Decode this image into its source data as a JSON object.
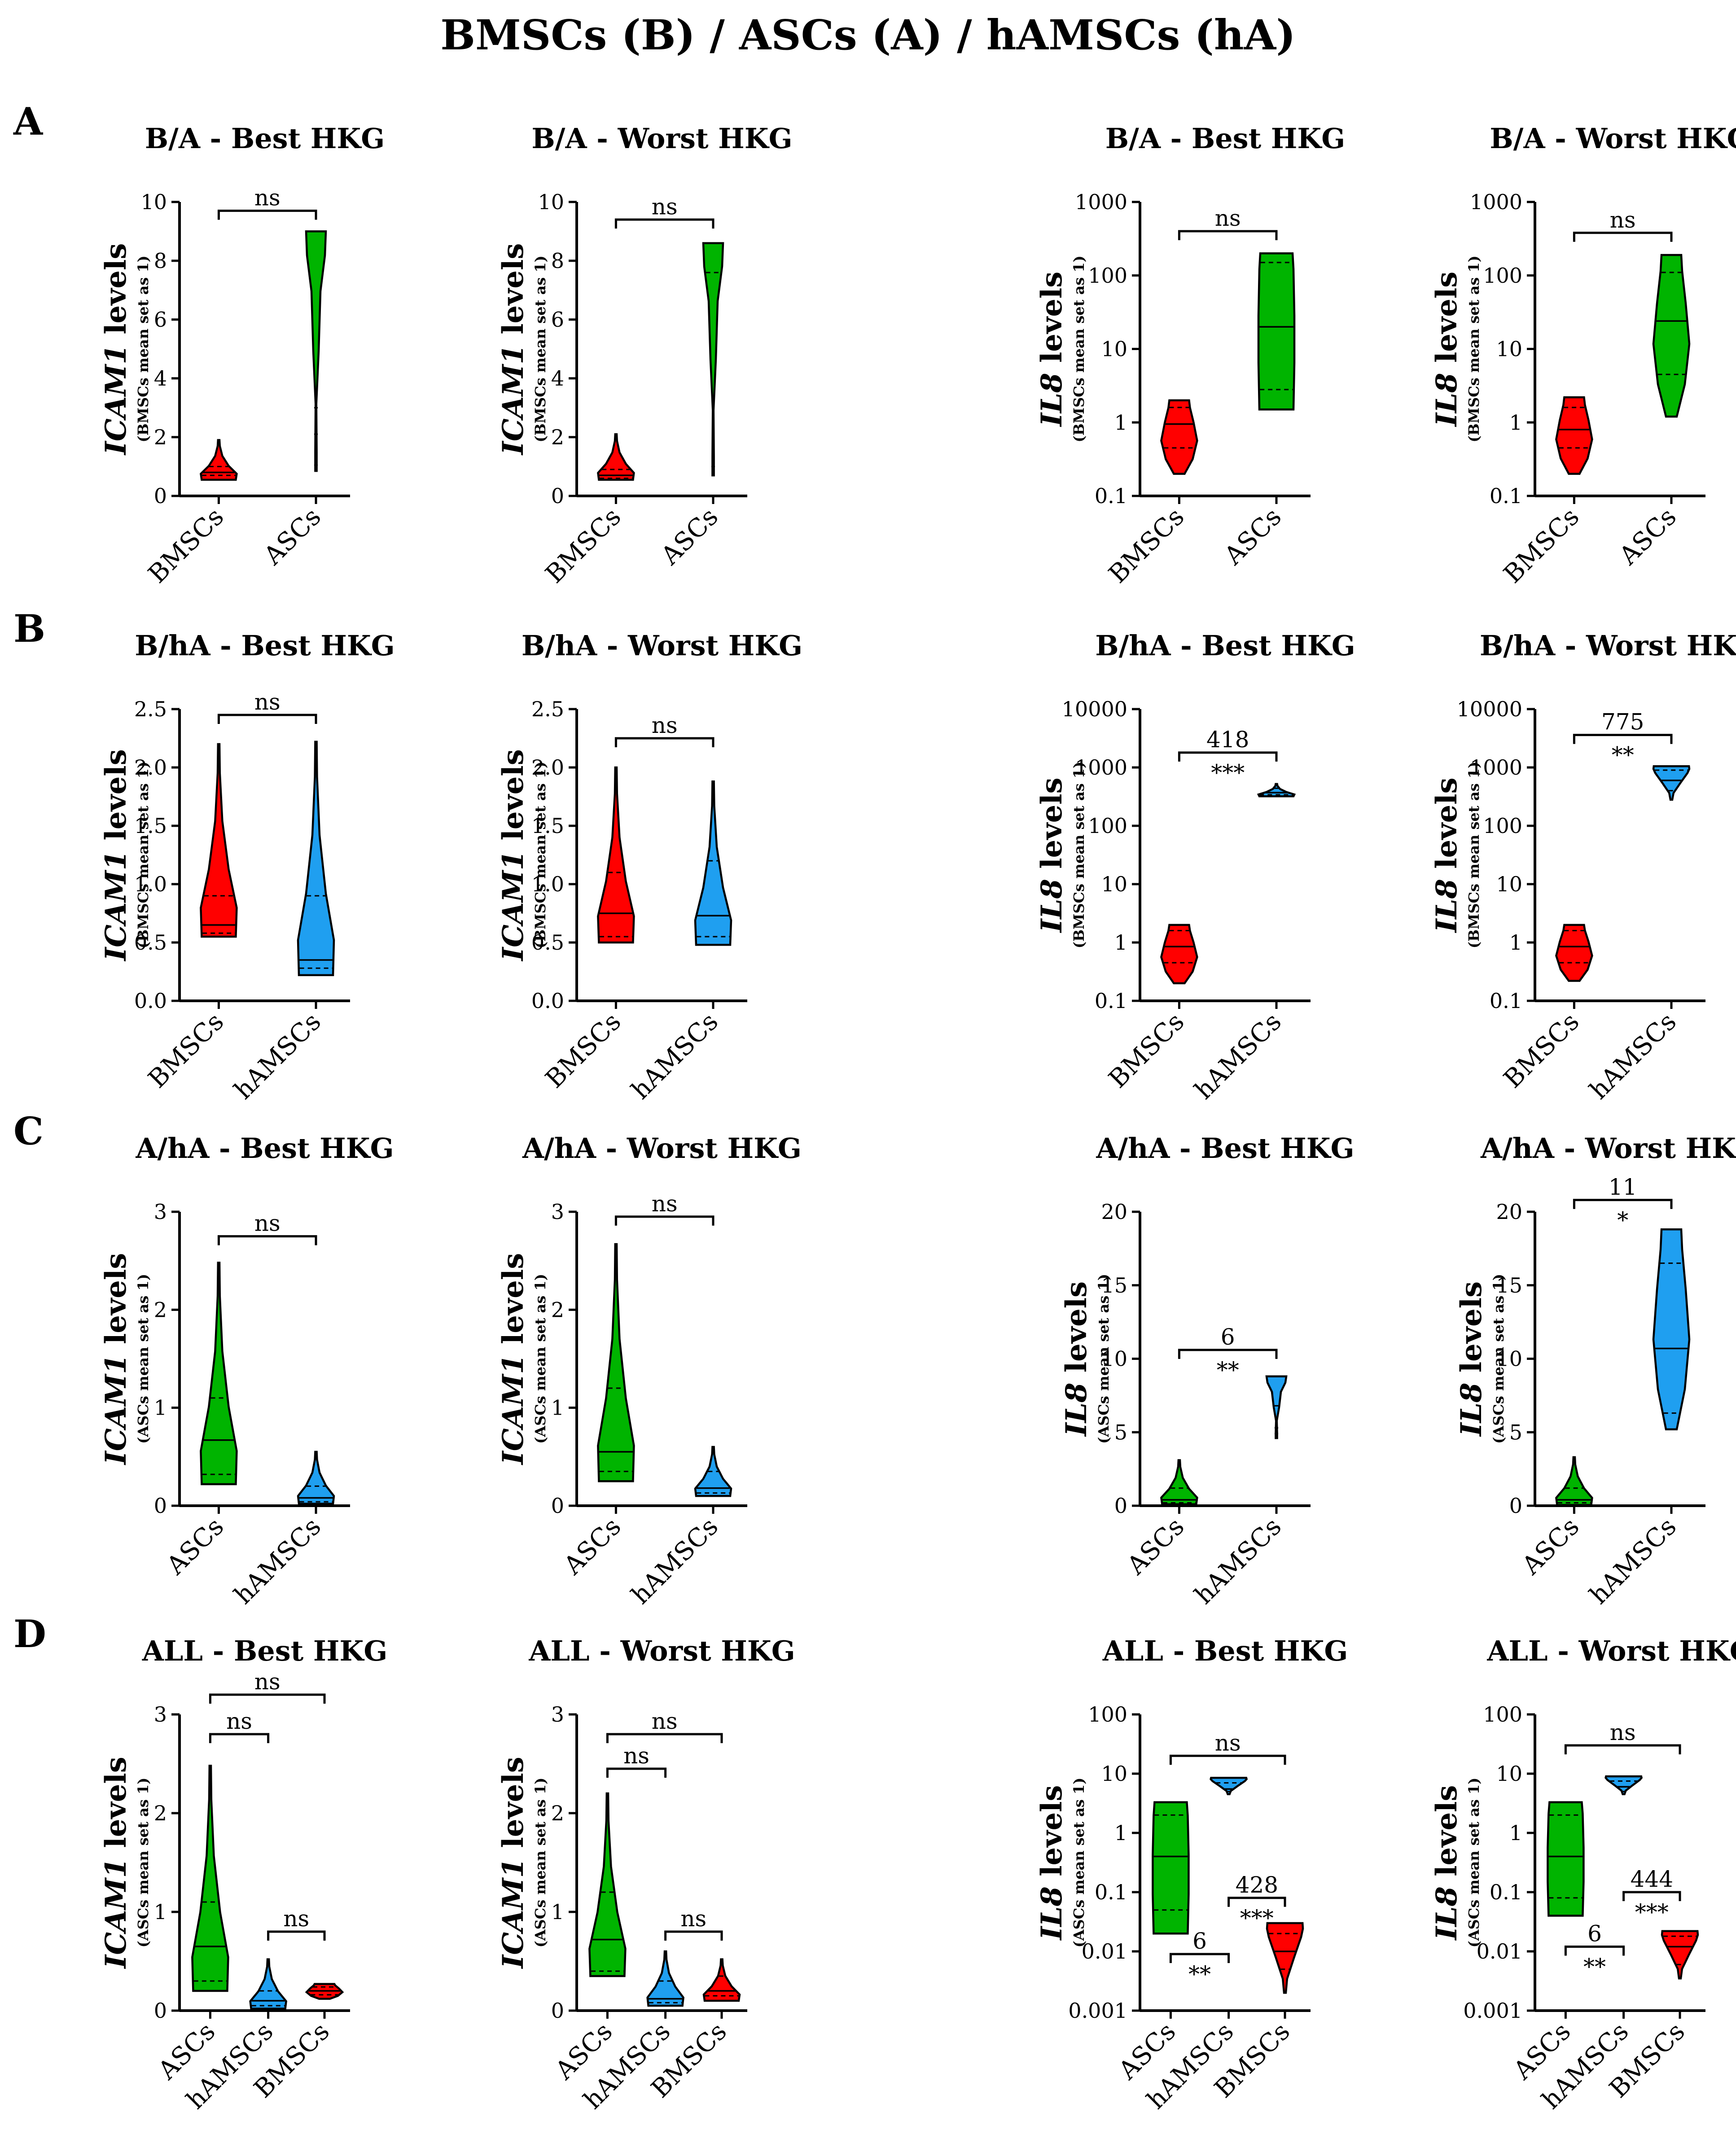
{
  "title": "BMSCs (B) / ASCs (A) / hAMSCs (hA)",
  "colors": {
    "BMSCs": "#ff0000",
    "ASCs": "#00b400",
    "hAMSCs": "#1f9ff0"
  },
  "rows": [
    {
      "letter": "A"
    },
    {
      "letter": "B"
    },
    {
      "letter": "C"
    },
    {
      "letter": "D"
    }
  ],
  "chart_data": [
    {
      "type": "violin",
      "title": "B/A - Best HKG",
      "ylabel": "ICAM1",
      "ylabel_rest": " levels",
      "ylabel_sub": "(BMSCs mean set as 1)",
      "scale": "linear",
      "ylim": [
        0,
        10
      ],
      "yticks": [
        0,
        2,
        4,
        6,
        8,
        10
      ],
      "ytick_labels": [
        "0",
        "2",
        "4",
        "6",
        "8",
        "10"
      ],
      "groups": [
        {
          "name": "BMSCs",
          "color": "BMSCs",
          "min": 0.55,
          "max": 1.9,
          "median": 0.8,
          "q1": 0.7,
          "q3": 1.0,
          "pattern": "bottom"
        },
        {
          "name": "ASCs",
          "color": "ASCs",
          "min": 0.85,
          "max": 9.0,
          "median": 2.1,
          "q1": 1.05,
          "q3": 3.0,
          "pattern": "cone"
        }
      ],
      "annotations": [
        {
          "from": 0,
          "to": 1,
          "y": 9.7,
          "labels": [
            "ns"
          ]
        }
      ]
    },
    {
      "type": "violin",
      "title": "B/A - Worst HKG",
      "ylabel": "ICAM1",
      "ylabel_rest": " levels",
      "ylabel_sub": "(BMSCs mean set as 1)",
      "scale": "linear",
      "ylim": [
        0,
        10
      ],
      "yticks": [
        0,
        2,
        4,
        6,
        8,
        10
      ],
      "ytick_labels": [
        "0",
        "2",
        "4",
        "6",
        "8",
        "10"
      ],
      "groups": [
        {
          "name": "BMSCs",
          "color": "BMSCs",
          "min": 0.55,
          "max": 2.1,
          "median": 0.7,
          "q1": 0.6,
          "q3": 0.9,
          "pattern": "bottom"
        },
        {
          "name": "ASCs",
          "color": "ASCs",
          "min": 0.7,
          "max": 8.6,
          "median": 3.4,
          "q1": 1.0,
          "q3": 7.6,
          "pattern": "cone"
        }
      ],
      "annotations": [
        {
          "from": 0,
          "to": 1,
          "y": 9.4,
          "labels": [
            "ns"
          ]
        }
      ]
    },
    {
      "type": "violin",
      "title": "B/A - Best HKG",
      "ylabel": "IL8",
      "ylabel_rest": " levels",
      "ylabel_sub": "(BMSCs mean set as 1)",
      "scale": "log",
      "ylim": [
        0.1,
        1000
      ],
      "yticks": [
        0.1,
        1,
        10,
        100,
        1000
      ],
      "ytick_labels": [
        "0.1",
        "1",
        "10",
        "100",
        "1000"
      ],
      "groups": [
        {
          "name": "BMSCs",
          "color": "BMSCs",
          "min": 0.2,
          "max": 2.0,
          "median": 0.95,
          "q1": 0.45,
          "q3": 1.6,
          "pattern": "middle"
        },
        {
          "name": "ASCs",
          "color": "ASCs",
          "min": 1.5,
          "max": 200,
          "median": 20,
          "q1": 2.8,
          "q3": 150,
          "pattern": "box"
        }
      ],
      "annotations": [
        {
          "from": 0,
          "to": 1,
          "y": 400,
          "labels": [
            "ns"
          ]
        }
      ]
    },
    {
      "type": "violin",
      "title": "B/A - Worst HKG",
      "ylabel": "IL8",
      "ylabel_rest": " levels",
      "ylabel_sub": "(BMSCs mean set as 1)",
      "scale": "log",
      "ylim": [
        0.1,
        1000
      ],
      "yticks": [
        0.1,
        1,
        10,
        100,
        1000
      ],
      "ytick_labels": [
        "0.1",
        "1",
        "10",
        "100",
        "1000"
      ],
      "groups": [
        {
          "name": "BMSCs",
          "color": "BMSCs",
          "min": 0.2,
          "max": 2.2,
          "median": 0.8,
          "q1": 0.45,
          "q3": 1.6,
          "pattern": "middle"
        },
        {
          "name": "ASCs",
          "color": "ASCs",
          "min": 1.2,
          "max": 190,
          "median": 24,
          "q1": 4.5,
          "q3": 110,
          "pattern": "middle"
        }
      ],
      "annotations": [
        {
          "from": 0,
          "to": 1,
          "y": 380,
          "labels": [
            "ns"
          ]
        }
      ]
    },
    {
      "type": "violin",
      "title": "B/hA - Best HKG",
      "ylabel": "ICAM1",
      "ylabel_rest": " levels",
      "ylabel_sub": "(BMSCs mean set as 1)",
      "scale": "linear",
      "ylim": [
        0,
        2.5
      ],
      "yticks": [
        0,
        0.5,
        1,
        1.5,
        2,
        2.5
      ],
      "ytick_labels": [
        "0.0",
        "0.5",
        "1.0",
        "1.5",
        "2.0",
        "2.5"
      ],
      "groups": [
        {
          "name": "BMSCs",
          "color": "BMSCs",
          "min": 0.55,
          "max": 2.2,
          "median": 0.65,
          "q1": 0.58,
          "q3": 0.9,
          "pattern": "bottom"
        },
        {
          "name": "hAMSCs",
          "color": "hAMSCs",
          "min": 0.22,
          "max": 2.22,
          "median": 0.35,
          "q1": 0.28,
          "q3": 0.9,
          "pattern": "bottom"
        }
      ],
      "annotations": [
        {
          "from": 0,
          "to": 1,
          "y": 2.45,
          "labels": [
            "ns"
          ]
        }
      ]
    },
    {
      "type": "violin",
      "title": "B/hA - Worst HKG",
      "ylabel": "ICAM1",
      "ylabel_rest": " levels",
      "ylabel_sub": "(BMSCs mean set as 1)",
      "scale": "linear",
      "ylim": [
        0,
        2.5
      ],
      "yticks": [
        0,
        0.5,
        1,
        1.5,
        2,
        2.5
      ],
      "ytick_labels": [
        "0.0",
        "0.5",
        "1.0",
        "1.5",
        "2.0",
        "2.5"
      ],
      "groups": [
        {
          "name": "BMSCs",
          "color": "BMSCs",
          "min": 0.5,
          "max": 2.0,
          "median": 0.75,
          "q1": 0.55,
          "q3": 1.1,
          "pattern": "bottom"
        },
        {
          "name": "hAMSCs",
          "color": "hAMSCs",
          "min": 0.48,
          "max": 1.88,
          "median": 0.73,
          "q1": 0.55,
          "q3": 1.2,
          "pattern": "bottom"
        }
      ],
      "annotations": [
        {
          "from": 0,
          "to": 1,
          "y": 2.25,
          "labels": [
            "ns"
          ]
        }
      ]
    },
    {
      "type": "violin",
      "title": "B/hA - Best HKG",
      "ylabel": "IL8",
      "ylabel_rest": " levels",
      "ylabel_sub": "(BMSCs mean set as 1)",
      "scale": "log",
      "ylim": [
        0.1,
        10000
      ],
      "yticks": [
        0.1,
        1,
        10,
        100,
        1000,
        10000
      ],
      "ytick_labels": [
        "0.1",
        "1",
        "10",
        "100",
        "1000",
        "10000"
      ],
      "groups": [
        {
          "name": "BMSCs",
          "color": "BMSCs",
          "min": 0.2,
          "max": 2.0,
          "median": 0.85,
          "q1": 0.45,
          "q3": 1.6,
          "pattern": "middle"
        },
        {
          "name": "hAMSCs",
          "color": "hAMSCs",
          "min": 320,
          "max": 520,
          "median": 370,
          "q1": 340,
          "q3": 440,
          "pattern": "bottom"
        }
      ],
      "annotations": [
        {
          "from": 0,
          "to": 1,
          "y": 1800,
          "labels": [
            "418",
            "***"
          ]
        }
      ]
    },
    {
      "type": "violin",
      "title": "B/hA - Worst HKG",
      "ylabel": "IL8",
      "ylabel_rest": " levels",
      "ylabel_sub": "(BMSCs mean set as 1)",
      "scale": "log",
      "ylim": [
        0.1,
        10000
      ],
      "yticks": [
        0.1,
        1,
        10,
        100,
        1000,
        10000
      ],
      "ytick_labels": [
        "0.1",
        "1",
        "10",
        "100",
        "1000",
        "10000"
      ],
      "groups": [
        {
          "name": "BMSCs",
          "color": "BMSCs",
          "min": 0.22,
          "max": 2.0,
          "median": 0.85,
          "q1": 0.45,
          "q3": 1.6,
          "pattern": "middle"
        },
        {
          "name": "hAMSCs",
          "color": "hAMSCs",
          "min": 280,
          "max": 1050,
          "median": 600,
          "q1": 400,
          "q3": 900,
          "pattern": "top"
        }
      ],
      "annotations": [
        {
          "from": 0,
          "to": 1,
          "y": 3600,
          "labels": [
            "775",
            "**"
          ]
        }
      ]
    },
    {
      "type": "violin",
      "title": "A/hA - Best HKG",
      "ylabel": "ICAM1",
      "ylabel_rest": " levels",
      "ylabel_sub": "(ASCs mean set as 1)",
      "scale": "linear",
      "ylim": [
        0,
        3
      ],
      "yticks": [
        0,
        1,
        2,
        3
      ],
      "ytick_labels": [
        "0",
        "1",
        "2",
        "3"
      ],
      "groups": [
        {
          "name": "ASCs",
          "color": "ASCs",
          "min": 0.22,
          "max": 2.48,
          "median": 0.67,
          "q1": 0.32,
          "q3": 1.1,
          "pattern": "bottom"
        },
        {
          "name": "hAMSCs",
          "color": "hAMSCs",
          "min": 0.02,
          "max": 0.55,
          "median": 0.08,
          "q1": 0.04,
          "q3": 0.2,
          "pattern": "bottom"
        }
      ],
      "annotations": [
        {
          "from": 0,
          "to": 1,
          "y": 2.75,
          "labels": [
            "ns"
          ]
        }
      ]
    },
    {
      "type": "violin",
      "title": "A/hA - Worst HKG",
      "ylabel": "ICAM1",
      "ylabel_rest": " levels",
      "ylabel_sub": "(ASCs mean set as 1)",
      "scale": "linear",
      "ylim": [
        0,
        3
      ],
      "yticks": [
        0,
        1,
        2,
        3
      ],
      "ytick_labels": [
        "0",
        "1",
        "2",
        "3"
      ],
      "groups": [
        {
          "name": "ASCs",
          "color": "ASCs",
          "min": 0.25,
          "max": 2.67,
          "median": 0.55,
          "q1": 0.35,
          "q3": 1.2,
          "pattern": "bottom"
        },
        {
          "name": "hAMSCs",
          "color": "hAMSCs",
          "min": 0.1,
          "max": 0.6,
          "median": 0.18,
          "q1": 0.13,
          "q3": 0.35,
          "pattern": "bottom"
        }
      ],
      "annotations": [
        {
          "from": 0,
          "to": 1,
          "y": 2.95,
          "labels": [
            "ns"
          ]
        }
      ]
    },
    {
      "type": "violin",
      "title": "A/hA - Best HKG",
      "ylabel": "IL8",
      "ylabel_rest": " levels",
      "ylabel_sub": "(ASCs mean set as 1)",
      "scale": "linear",
      "ylim": [
        0,
        20
      ],
      "yticks": [
        0,
        5,
        10,
        15,
        20
      ],
      "ytick_labels": [
        "0",
        "5",
        "10",
        "15",
        "20"
      ],
      "groups": [
        {
          "name": "ASCs",
          "color": "ASCs",
          "min": 0.1,
          "max": 3.1,
          "median": 0.4,
          "q1": 0.2,
          "q3": 1.2,
          "pattern": "bottom"
        },
        {
          "name": "hAMSCs",
          "color": "hAMSCs",
          "min": 4.6,
          "max": 8.8,
          "median": 5.3,
          "q1": 4.9,
          "q3": 6.8,
          "pattern": "cone"
        }
      ],
      "annotations": [
        {
          "from": 0,
          "to": 1,
          "y": 10.6,
          "labels": [
            "6",
            "**"
          ]
        }
      ]
    },
    {
      "type": "violin",
      "title": "A/hA - Worst HKG",
      "ylabel": "IL8",
      "ylabel_rest": " levels",
      "ylabel_sub": "(ASCs mean set as 1)",
      "scale": "linear",
      "ylim": [
        0,
        20
      ],
      "yticks": [
        0,
        5,
        10,
        15,
        20
      ],
      "ytick_labels": [
        "0",
        "5",
        "10",
        "15",
        "20"
      ],
      "groups": [
        {
          "name": "ASCs",
          "color": "ASCs",
          "min": 0.05,
          "max": 3.3,
          "median": 0.4,
          "q1": 0.2,
          "q3": 1.2,
          "pattern": "bottom"
        },
        {
          "name": "hAMSCs",
          "color": "hAMSCs",
          "min": 5.2,
          "max": 18.8,
          "median": 10.7,
          "q1": 6.3,
          "q3": 16.5,
          "pattern": "middle"
        }
      ],
      "annotations": [
        {
          "from": 0,
          "to": 1,
          "y": 20.8,
          "labels": [
            "11",
            "*"
          ]
        }
      ]
    },
    {
      "type": "violin",
      "title": "ALL - Best HKG",
      "ylabel": "ICAM1",
      "ylabel_rest": " levels",
      "ylabel_sub": "(ASCs mean set as 1)",
      "scale": "linear",
      "ylim": [
        0,
        3
      ],
      "yticks": [
        0,
        1,
        2,
        3
      ],
      "ytick_labels": [
        "0",
        "1",
        "2",
        "3"
      ],
      "groups": [
        {
          "name": "ASCs",
          "color": "ASCs",
          "min": 0.2,
          "max": 2.48,
          "median": 0.65,
          "q1": 0.3,
          "q3": 1.1,
          "pattern": "bottom"
        },
        {
          "name": "hAMSCs",
          "color": "hAMSCs",
          "min": 0.02,
          "max": 0.52,
          "median": 0.1,
          "q1": 0.05,
          "q3": 0.2,
          "pattern": "bottom"
        },
        {
          "name": "BMSCs",
          "color": "BMSCs",
          "min": 0.12,
          "max": 0.27,
          "median": 0.2,
          "q1": 0.16,
          "q3": 0.24,
          "pattern": "middle"
        }
      ],
      "annotations": [
        {
          "from": 0,
          "to": 2,
          "y": 3.2,
          "labels": [
            "ns"
          ]
        },
        {
          "from": 0,
          "to": 1,
          "y": 2.8,
          "labels": [
            "ns"
          ]
        },
        {
          "from": 1,
          "to": 2,
          "y": 0.8,
          "labels": [
            "ns"
          ]
        }
      ]
    },
    {
      "type": "violin",
      "title": "ALL - Worst HKG",
      "ylabel": "ICAM1",
      "ylabel_rest": " levels",
      "ylabel_sub": "(ASCs mean set as 1)",
      "scale": "linear",
      "ylim": [
        0,
        3
      ],
      "yticks": [
        0,
        1,
        2,
        3
      ],
      "ytick_labels": [
        "0",
        "1",
        "2",
        "3"
      ],
      "groups": [
        {
          "name": "ASCs",
          "color": "ASCs",
          "min": 0.35,
          "max": 2.2,
          "median": 0.72,
          "q1": 0.4,
          "q3": 1.2,
          "pattern": "bottom"
        },
        {
          "name": "hAMSCs",
          "color": "hAMSCs",
          "min": 0.05,
          "max": 0.6,
          "median": 0.12,
          "q1": 0.08,
          "q3": 0.3,
          "pattern": "bottom"
        },
        {
          "name": "BMSCs",
          "color": "BMSCs",
          "min": 0.1,
          "max": 0.52,
          "median": 0.2,
          "q1": 0.15,
          "q3": 0.35,
          "pattern": "bottom"
        }
      ],
      "annotations": [
        {
          "from": 0,
          "to": 2,
          "y": 2.8,
          "labels": [
            "ns"
          ]
        },
        {
          "from": 0,
          "to": 1,
          "y": 2.45,
          "labels": [
            "ns"
          ]
        },
        {
          "from": 1,
          "to": 2,
          "y": 0.8,
          "labels": [
            "ns"
          ]
        }
      ]
    },
    {
      "type": "violin",
      "title": "ALL - Best HKG",
      "ylabel": "IL8",
      "ylabel_rest": " levels",
      "ylabel_sub": "(ASCs mean set as 1)",
      "scale": "log",
      "ylim": [
        0.001,
        100
      ],
      "yticks": [
        0.001,
        0.01,
        0.1,
        1,
        10,
        100
      ],
      "ytick_labels": [
        "0.001",
        "0.01",
        "0.1",
        "1",
        "10",
        "100"
      ],
      "groups": [
        {
          "name": "ASCs",
          "color": "ASCs",
          "min": 0.02,
          "max": 3.3,
          "median": 0.4,
          "q1": 0.05,
          "q3": 2.0,
          "pattern": "box"
        },
        {
          "name": "hAMSCs",
          "color": "hAMSCs",
          "min": 4.5,
          "max": 8.5,
          "median": 5.5,
          "q1": 5.0,
          "q3": 7.0,
          "pattern": "top"
        },
        {
          "name": "BMSCs",
          "color": "BMSCs",
          "min": 0.002,
          "max": 0.03,
          "median": 0.01,
          "q1": 0.005,
          "q3": 0.02,
          "pattern": "top"
        }
      ],
      "annotations": [
        {
          "from": 0,
          "to": 2,
          "y": 20,
          "labels": [
            "ns"
          ]
        },
        {
          "from": 1,
          "to": 2,
          "y": 0.08,
          "labels": [
            "428",
            "***"
          ]
        },
        {
          "from": 0,
          "to": 1,
          "y": 0.009,
          "labels": [
            "6",
            "**"
          ]
        }
      ]
    },
    {
      "type": "violin",
      "title": "ALL - Worst HKG",
      "ylabel": "IL8",
      "ylabel_rest": " levels",
      "ylabel_sub": "(ASCs mean set as 1)",
      "scale": "log",
      "ylim": [
        0.001,
        100
      ],
      "yticks": [
        0.001,
        0.01,
        0.1,
        1,
        10,
        100
      ],
      "ytick_labels": [
        "0.001",
        "0.01",
        "0.1",
        "1",
        "10",
        "100"
      ],
      "groups": [
        {
          "name": "ASCs",
          "color": "ASCs",
          "min": 0.04,
          "max": 3.3,
          "median": 0.4,
          "q1": 0.08,
          "q3": 2.0,
          "pattern": "box"
        },
        {
          "name": "hAMSCs",
          "color": "hAMSCs",
          "min": 4.5,
          "max": 9.0,
          "median": 6.0,
          "q1": 5.0,
          "q3": 7.5,
          "pattern": "top"
        },
        {
          "name": "BMSCs",
          "color": "BMSCs",
          "min": 0.0035,
          "max": 0.022,
          "median": 0.012,
          "q1": 0.006,
          "q3": 0.018,
          "pattern": "top"
        }
      ],
      "annotations": [
        {
          "from": 0,
          "to": 2,
          "y": 30,
          "labels": [
            "ns"
          ]
        },
        {
          "from": 1,
          "to": 2,
          "y": 0.1,
          "labels": [
            "444",
            "***"
          ]
        },
        {
          "from": 0,
          "to": 1,
          "y": 0.012,
          "labels": [
            "6",
            "**"
          ]
        }
      ]
    }
  ]
}
